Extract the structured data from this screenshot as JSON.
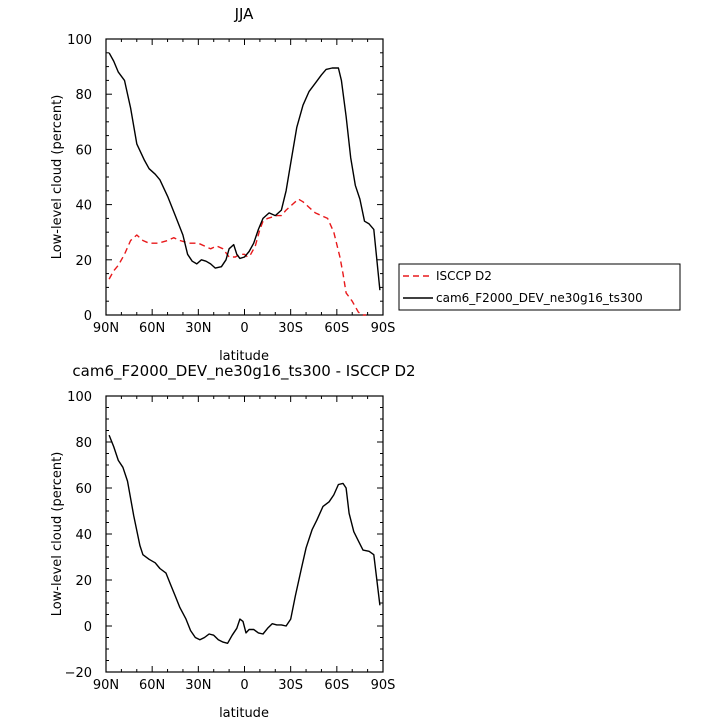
{
  "chart_data": [
    {
      "type": "line",
      "title": "JJA",
      "xlabel": "latitude",
      "ylabel": "Low-level cloud (percent)",
      "xlim": [
        90,
        -90
      ],
      "ylim": [
        0,
        100
      ],
      "xticks": [
        90,
        60,
        30,
        0,
        -30,
        -60,
        -90
      ],
      "xtick_labels": [
        "90N",
        "60N",
        "30N",
        "0",
        "30S",
        "60S",
        "90S"
      ],
      "yticks": [
        0,
        20,
        40,
        60,
        80,
        100
      ],
      "ytick_labels": [
        "0",
        "20",
        "40",
        "60",
        "80",
        "100"
      ],
      "legend_position": "right",
      "series": [
        {
          "name": "ISCCP D2",
          "color": "#e8191b",
          "dash": "dashed",
          "points": [
            [
              88,
              13
            ],
            [
              85,
              16
            ],
            [
              82,
              18
            ],
            [
              78,
              22
            ],
            [
              74,
              27
            ],
            [
              70,
              29
            ],
            [
              66,
              27
            ],
            [
              62,
              26
            ],
            [
              56,
              26
            ],
            [
              50,
              27
            ],
            [
              46,
              28
            ],
            [
              42,
              27
            ],
            [
              36,
              26
            ],
            [
              30,
              26
            ],
            [
              26,
              25
            ],
            [
              22,
              24
            ],
            [
              18,
              25
            ],
            [
              14,
              24
            ],
            [
              10,
              21
            ],
            [
              6,
              21
            ],
            [
              3,
              22
            ],
            [
              0,
              22
            ],
            [
              -2,
              21
            ],
            [
              -4,
              22
            ],
            [
              -7,
              25
            ],
            [
              -10,
              31
            ],
            [
              -12,
              34
            ],
            [
              -15,
              35
            ],
            [
              -18,
              35.5
            ],
            [
              -21,
              36
            ],
            [
              -24,
              36
            ],
            [
              -27,
              38
            ],
            [
              -31,
              40
            ],
            [
              -35,
              42
            ],
            [
              -38,
              41
            ],
            [
              -42,
              39
            ],
            [
              -46,
              37
            ],
            [
              -50,
              36
            ],
            [
              -54,
              35
            ],
            [
              -58,
              30
            ],
            [
              -62,
              21
            ],
            [
              -64,
              15
            ],
            [
              -66,
              8
            ],
            [
              -70,
              5
            ],
            [
              -74,
              1
            ],
            [
              -77,
              0
            ],
            [
              -79,
              0
            ]
          ]
        },
        {
          "name": "cam6_F2000_DEV_ne30g16_ts300",
          "color": "#000000",
          "dash": "solid",
          "points": [
            [
              88,
              95
            ],
            [
              85,
              92
            ],
            [
              82,
              88
            ],
            [
              78,
              85
            ],
            [
              74,
              75
            ],
            [
              70,
              62
            ],
            [
              65,
              56
            ],
            [
              62,
              53
            ],
            [
              58,
              51
            ],
            [
              55,
              49
            ],
            [
              50,
              43
            ],
            [
              45,
              36
            ],
            [
              40,
              29
            ],
            [
              37,
              22
            ],
            [
              34,
              19.5
            ],
            [
              31,
              18.5
            ],
            [
              28,
              20
            ],
            [
              25,
              19.5
            ],
            [
              22,
              18.5
            ],
            [
              19,
              17
            ],
            [
              15,
              17.5
            ],
            [
              12,
              20
            ],
            [
              10,
              24
            ],
            [
              7,
              25.5
            ],
            [
              5,
              22
            ],
            [
              3,
              20.5
            ],
            [
              0,
              21
            ],
            [
              -3,
              23
            ],
            [
              -6,
              26
            ],
            [
              -9,
              31
            ],
            [
              -12,
              35
            ],
            [
              -16,
              37
            ],
            [
              -20,
              36
            ],
            [
              -24,
              38
            ],
            [
              -27,
              45
            ],
            [
              -30,
              55
            ],
            [
              -34,
              68
            ],
            [
              -38,
              76
            ],
            [
              -42,
              81
            ],
            [
              -46,
              84
            ],
            [
              -50,
              87
            ],
            [
              -53,
              89
            ],
            [
              -57,
              89.5
            ],
            [
              -61,
              89.5
            ],
            [
              -63,
              85
            ],
            [
              -66,
              72
            ],
            [
              -69,
              57
            ],
            [
              -72,
              47
            ],
            [
              -75,
              42
            ],
            [
              -78,
              34
            ],
            [
              -81,
              33
            ],
            [
              -84,
              31
            ],
            [
              -88,
              9
            ]
          ]
        }
      ]
    },
    {
      "type": "line",
      "title": "cam6_F2000_DEV_ne30g16_ts300 - ISCCP D2",
      "xlabel": "latitude",
      "ylabel": "Low-level cloud (percent)",
      "xlim": [
        90,
        -90
      ],
      "ylim": [
        -20,
        100
      ],
      "xticks": [
        90,
        60,
        30,
        0,
        -30,
        -60,
        -90
      ],
      "xtick_labels": [
        "90N",
        "60N",
        "30N",
        "0",
        "30S",
        "60S",
        "90S"
      ],
      "yticks": [
        -20,
        0,
        20,
        40,
        60,
        80,
        100
      ],
      "ytick_labels": [
        "−20",
        "0",
        "20",
        "40",
        "60",
        "80",
        "100"
      ],
      "series": [
        {
          "color": "#000000",
          "dash": "solid",
          "points": [
            [
              88,
              83
            ],
            [
              85,
              78
            ],
            [
              82,
              72
            ],
            [
              79,
              69
            ],
            [
              76,
              63
            ],
            [
              72,
              48
            ],
            [
              68,
              35
            ],
            [
              66,
              31
            ],
            [
              62,
              29
            ],
            [
              58,
              27.5
            ],
            [
              55,
              25
            ],
            [
              51,
              23
            ],
            [
              48,
              18
            ],
            [
              45,
              13
            ],
            [
              42,
              8
            ],
            [
              38,
              3
            ],
            [
              35,
              -2
            ],
            [
              32,
              -5
            ],
            [
              29,
              -6
            ],
            [
              26,
              -5
            ],
            [
              23,
              -3.5
            ],
            [
              20,
              -4
            ],
            [
              17,
              -6
            ],
            [
              14,
              -7
            ],
            [
              11,
              -7.5
            ],
            [
              8,
              -4
            ],
            [
              5,
              -1
            ],
            [
              3,
              3
            ],
            [
              1,
              2
            ],
            [
              -1,
              -3
            ],
            [
              -3,
              -1.5
            ],
            [
              -6,
              -1.5
            ],
            [
              -9,
              -3
            ],
            [
              -12,
              -3.5
            ],
            [
              -15,
              -1
            ],
            [
              -18,
              1
            ],
            [
              -21,
              0.5
            ],
            [
              -24,
              0.5
            ],
            [
              -27,
              0
            ],
            [
              -30,
              3
            ],
            [
              -33,
              13
            ],
            [
              -37,
              25
            ],
            [
              -40,
              34
            ],
            [
              -44,
              42
            ],
            [
              -47,
              46
            ],
            [
              -51,
              52
            ],
            [
              -55,
              54
            ],
            [
              -58,
              57
            ],
            [
              -61,
              61.5
            ],
            [
              -64,
              62
            ],
            [
              -66,
              60
            ],
            [
              -68,
              49
            ],
            [
              -71,
              41
            ],
            [
              -74,
              37
            ],
            [
              -77,
              33
            ],
            [
              -81,
              32.5
            ],
            [
              -84,
              31
            ],
            [
              -88,
              9
            ]
          ]
        }
      ]
    }
  ]
}
